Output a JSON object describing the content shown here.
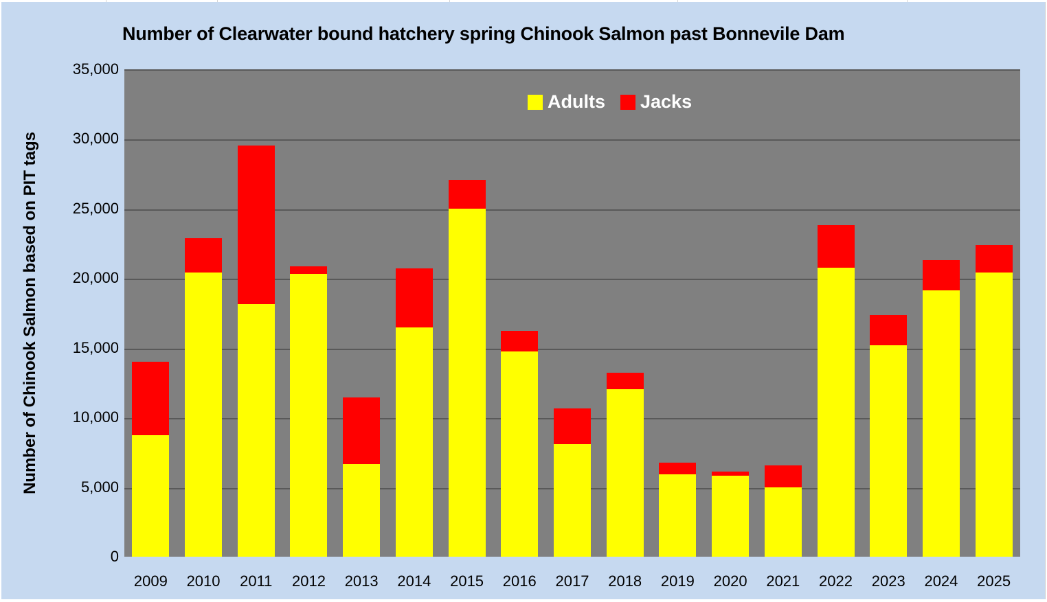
{
  "chart_data": {
    "type": "bar",
    "stacked": true,
    "title": "Number of Clearwater bound hatchery spring Chinook Salmon past Bonnevile Dam",
    "xlabel": "",
    "ylabel": "Number of Chinook Salmon based on PIT tags",
    "ylim": [
      0,
      35000
    ],
    "yticks": [
      0,
      5000,
      10000,
      15000,
      20000,
      25000,
      30000,
      35000
    ],
    "ytick_labels": [
      "0",
      "5,000",
      "10,000",
      "15,000",
      "20,000",
      "25,000",
      "30,000",
      "35,000"
    ],
    "grid": true,
    "legend_position": "top-center inside plot",
    "categories": [
      "2009",
      "2010",
      "2011",
      "2012",
      "2013",
      "2014",
      "2015",
      "2016",
      "2017",
      "2018",
      "2019",
      "2020",
      "2021",
      "2022",
      "2023",
      "2024",
      "2025"
    ],
    "series": [
      {
        "name": "Adults",
        "color": "#ffff00",
        "values": [
          8740,
          20390,
          18120,
          20290,
          6660,
          16490,
          24980,
          14760,
          8090,
          12040,
          5920,
          5820,
          4990,
          20730,
          15200,
          19150,
          20390
        ]
      },
      {
        "name": "Jacks",
        "color": "#ff0000",
        "values": [
          5280,
          2460,
          11400,
          540,
          4790,
          4240,
          2070,
          1480,
          2570,
          1190,
          840,
          300,
          1570,
          3060,
          2170,
          2170,
          1970
        ]
      }
    ]
  },
  "colors": {
    "chart_background": "#c6d9f0",
    "plot_background": "#808080",
    "gridline": "#595959",
    "legend_text": "#ffffff"
  }
}
